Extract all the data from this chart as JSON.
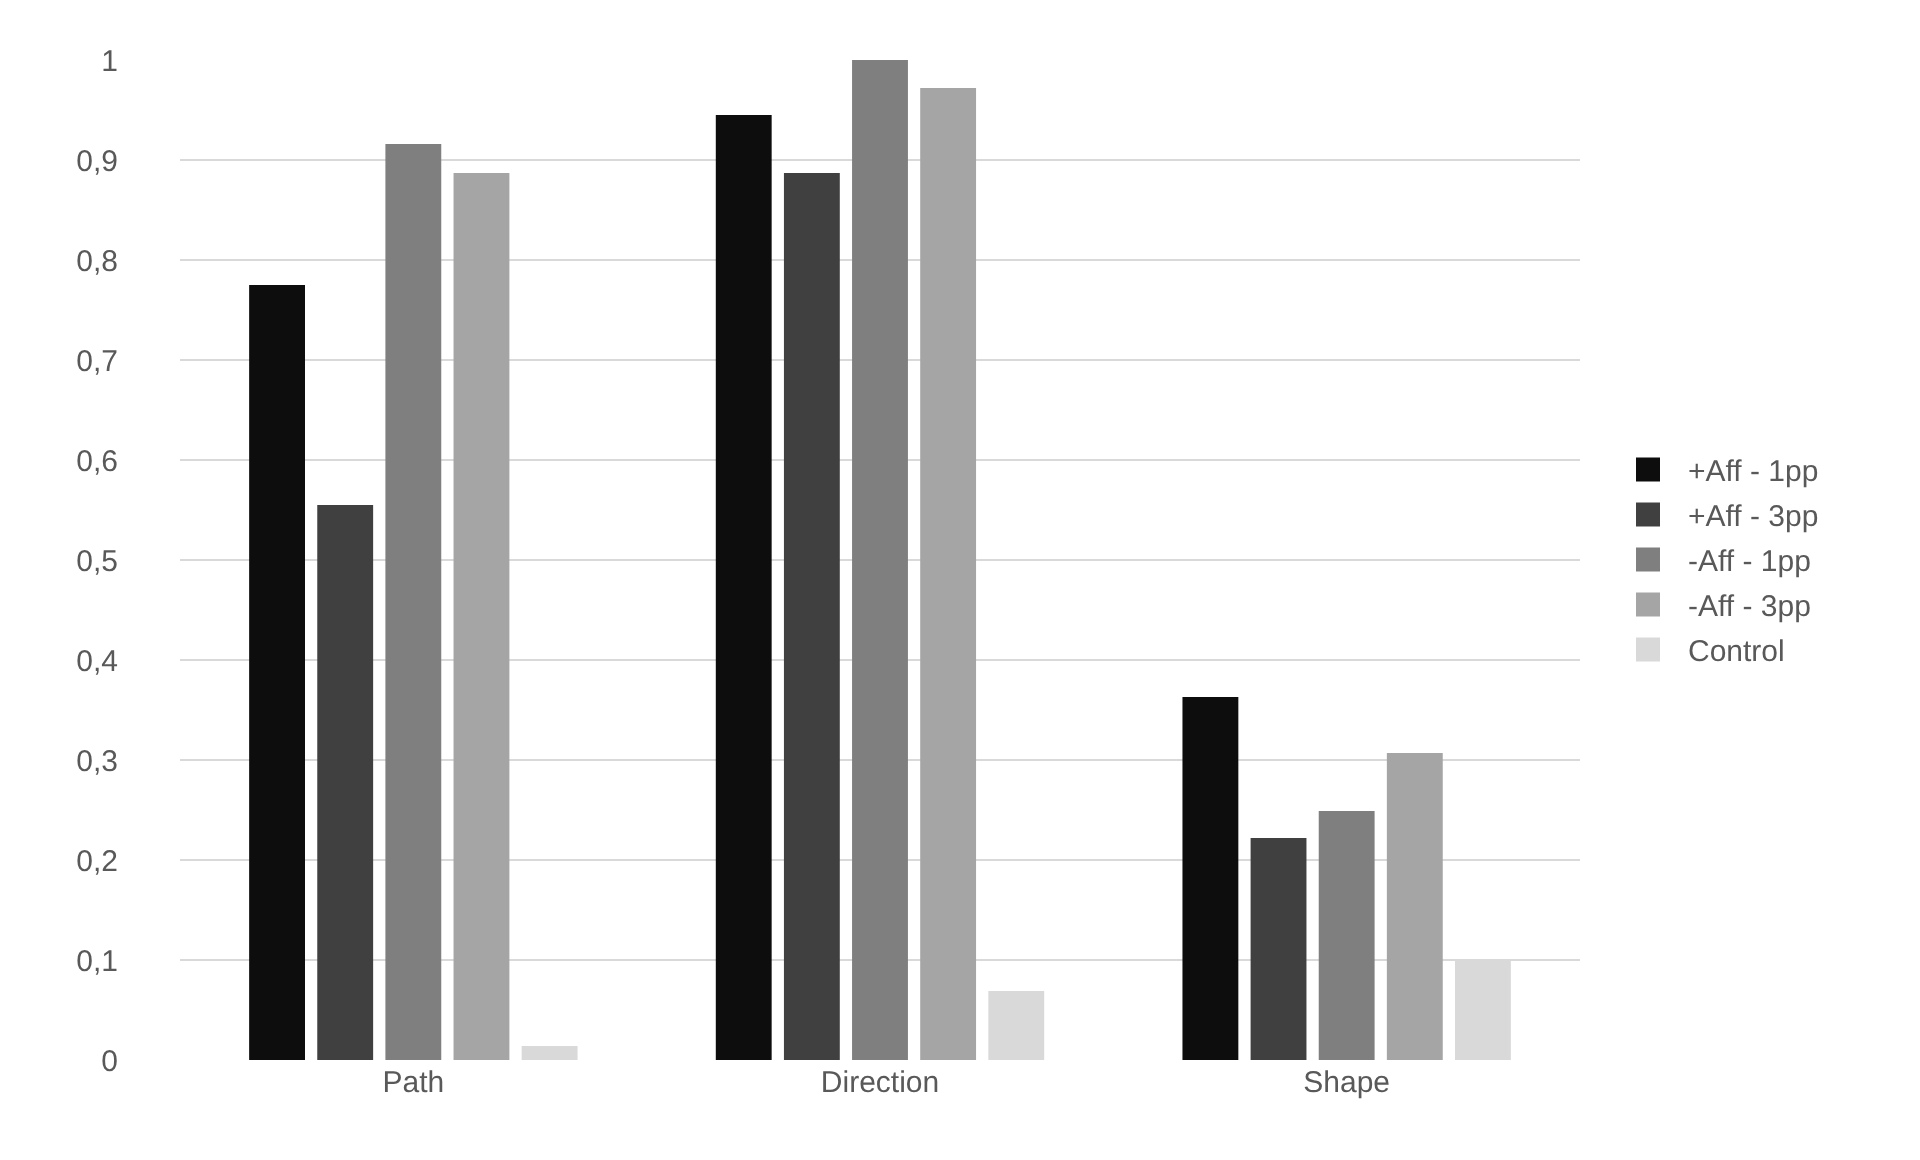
{
  "chart_data": {
    "type": "bar",
    "categories": [
      "Path",
      "Direction",
      "Shape"
    ],
    "series": [
      {
        "name": "+Aff - 1pp",
        "color": "#0d0d0d",
        "values": [
          0.775,
          0.945,
          0.363
        ]
      },
      {
        "name": "+Aff - 3pp",
        "color": "#404040",
        "values": [
          0.555,
          0.887,
          0.222
        ]
      },
      {
        "name": "-Aff - 1pp",
        "color": "#7f7f7f",
        "values": [
          0.916,
          1.0,
          0.249
        ]
      },
      {
        "name": "-Aff - 3pp",
        "color": "#a5a5a5",
        "values": [
          0.887,
          0.972,
          0.307
        ]
      },
      {
        "name": "Control",
        "color": "#d9d9d9",
        "values": [
          0.014,
          0.069,
          0.1
        ]
      }
    ],
    "ylim": [
      0,
      1
    ],
    "yticks": [
      0,
      {
        "value": 0.1,
        "label": "0,1"
      },
      {
        "value": 0.2,
        "label": "0,2"
      },
      {
        "value": 0.3,
        "label": "0,3"
      },
      {
        "value": 0.4,
        "label": "0,4"
      },
      {
        "value": 0.5,
        "label": "0,5"
      },
      {
        "value": 0.6,
        "label": "0,6"
      },
      {
        "value": 0.7,
        "label": "0,7"
      },
      {
        "value": 0.8,
        "label": "0,8"
      },
      {
        "value": 0.9,
        "label": "0,9"
      },
      1
    ],
    "grid": "y",
    "legend": "right"
  }
}
